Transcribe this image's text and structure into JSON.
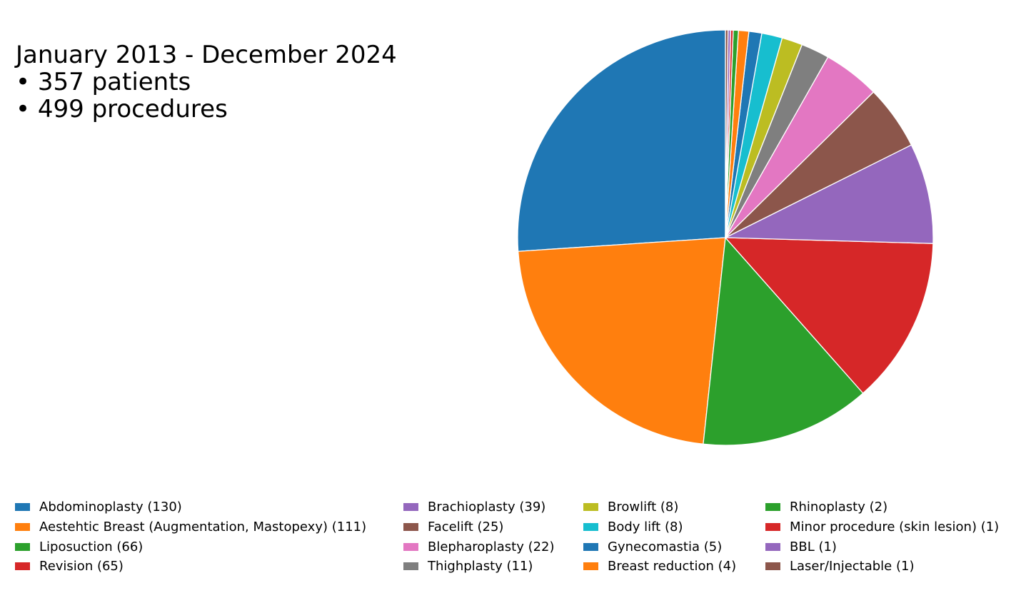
{
  "header": {
    "line1": "January 2013 - December 2024",
    "line2": "• 357 patients",
    "line3": "• 499 procedures"
  },
  "chart_data": {
    "type": "pie",
    "start_angle": "top, clockwise (largest slice counter-clockwise)",
    "legend_position": "bottom",
    "slices": [
      {
        "label": "Abdominoplasty (130)",
        "name": "Abdominoplasty",
        "value": 130,
        "color": "#1f77b4"
      },
      {
        "label": "Aestehtic Breast (Augmentation, Mastopexy) (111)",
        "name": "Aestehtic Breast (Augmentation, Mastopexy)",
        "value": 111,
        "color": "#ff7f0e"
      },
      {
        "label": "Liposuction (66)",
        "name": "Liposuction",
        "value": 66,
        "color": "#2ca02c"
      },
      {
        "label": "Revision (65)",
        "name": "Revision",
        "value": 65,
        "color": "#d62728"
      },
      {
        "label": "Brachioplasty (39)",
        "name": "Brachioplasty",
        "value": 39,
        "color": "#9467bd"
      },
      {
        "label": "Facelift (25)",
        "name": "Facelift",
        "value": 25,
        "color": "#8c564b"
      },
      {
        "label": "Blepharoplasty (22)",
        "name": "Blepharoplasty",
        "value": 22,
        "color": "#e377c2"
      },
      {
        "label": "Thighplasty (11)",
        "name": "Thighplasty",
        "value": 11,
        "color": "#7f7f7f"
      },
      {
        "label": "Browlift (8)",
        "name": "Browlift",
        "value": 8,
        "color": "#bcbd22"
      },
      {
        "label": "Body lift (8)",
        "name": "Body lift",
        "value": 8,
        "color": "#17becf"
      },
      {
        "label": "Gynecomastia (5)",
        "name": "Gynecomastia",
        "value": 5,
        "color": "#1f77b4"
      },
      {
        "label": "Breast reduction (4)",
        "name": "Breast reduction",
        "value": 4,
        "color": "#ff7f0e"
      },
      {
        "label": "Rhinoplasty (2)",
        "name": "Rhinoplasty",
        "value": 2,
        "color": "#2ca02c"
      },
      {
        "label": "Minor procedure (skin lesion) (1)",
        "name": "Minor procedure (skin lesion)",
        "value": 1,
        "color": "#d62728"
      },
      {
        "label": "BBL (1)",
        "name": "BBL",
        "value": 1,
        "color": "#9467bd"
      },
      {
        "label": "Laser/Injectable (1)",
        "name": "Laser/Injectable",
        "value": 1,
        "color": "#8c564b"
      }
    ]
  }
}
